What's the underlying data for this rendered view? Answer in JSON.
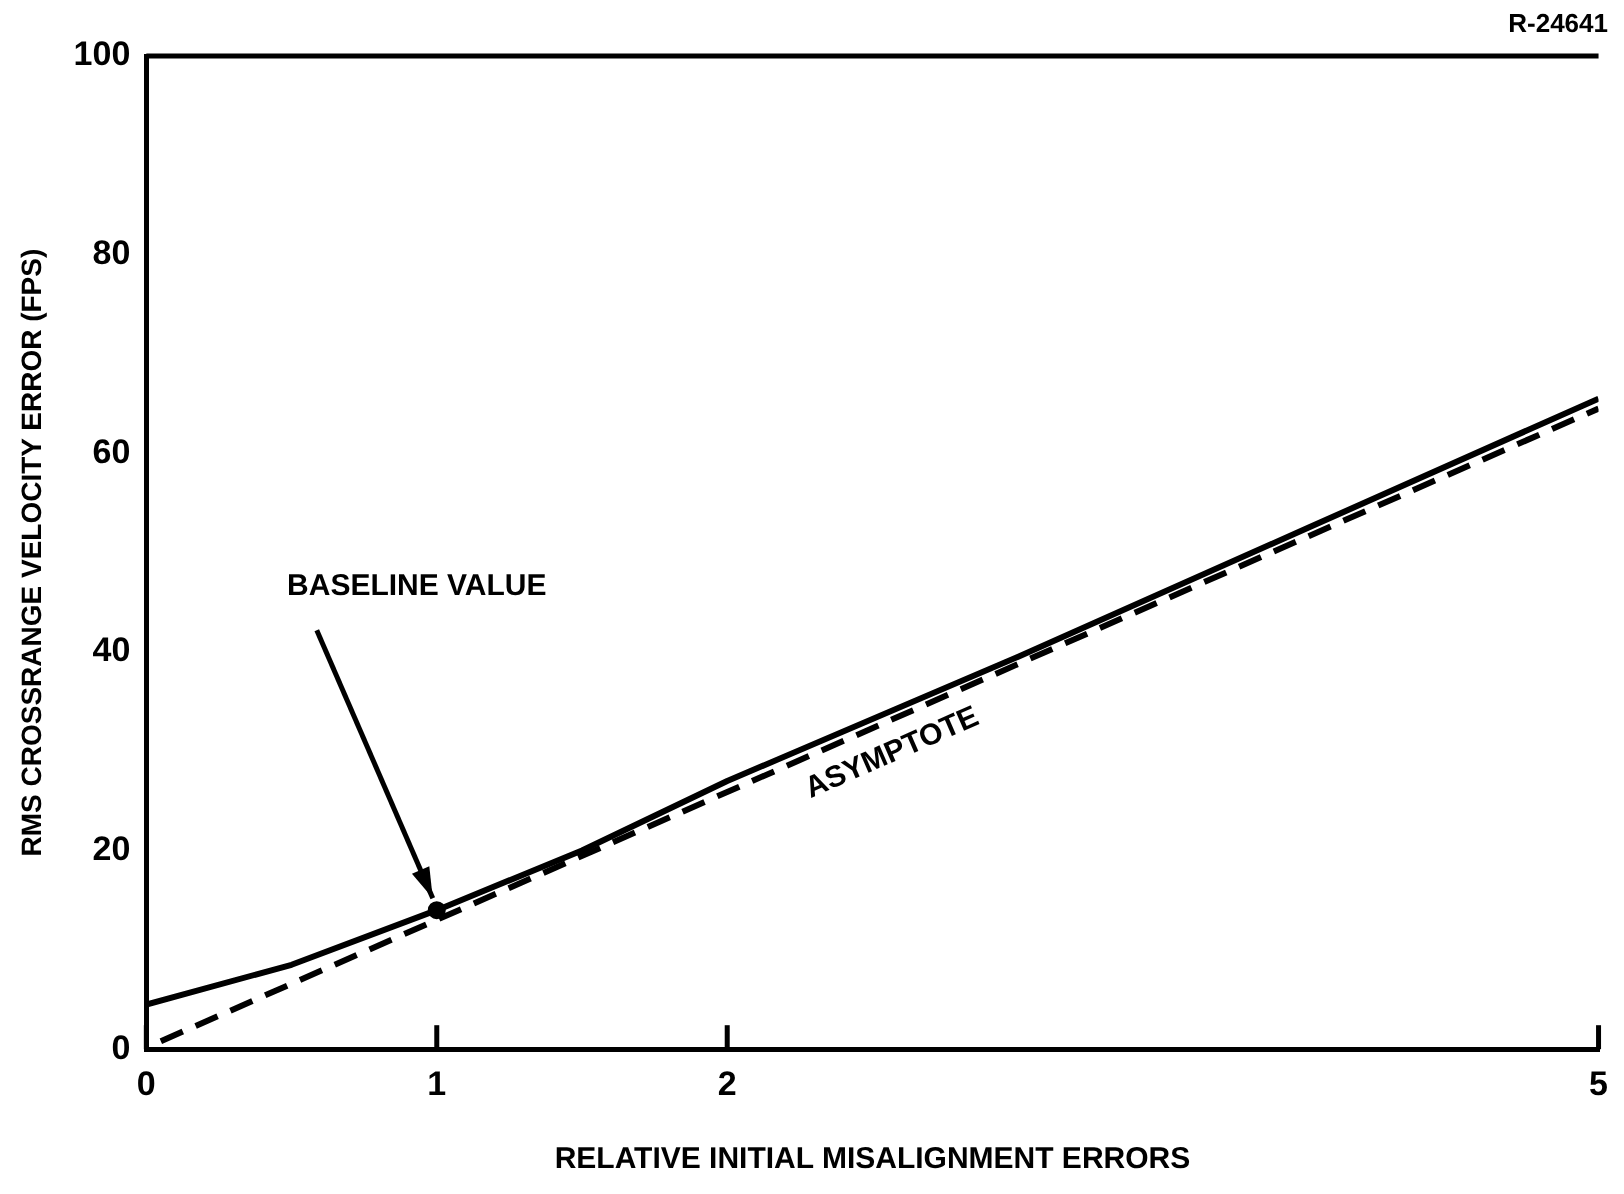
{
  "chart_data": {
    "type": "line",
    "xlabel": "RELATIVE INITIAL MISALIGNMENT ERRORS",
    "ylabel": "RMS CROSSRANGE VELOCITY ERROR (FPS)",
    "xlim": [
      0,
      5
    ],
    "ylim": [
      0,
      100
    ],
    "xticks": [
      0,
      1,
      2,
      5
    ],
    "yticks": [
      0,
      20,
      40,
      60,
      80,
      100
    ],
    "grid": false,
    "legend": false,
    "series": [
      {
        "type": "line",
        "color": "#000000",
        "line_style": "solid",
        "marker": "none",
        "x": [
          0,
          0.5,
          1,
          1.5,
          2,
          3,
          4,
          5
        ],
        "values": [
          4.5,
          8.5,
          14,
          20,
          27,
          39.5,
          52.5,
          65.5
        ]
      },
      {
        "type": "line",
        "name": "ASYMPTOTE",
        "color": "#000000",
        "line_style": "dashed",
        "marker": "none",
        "x": [
          0.05,
          5
        ],
        "values": [
          0.8,
          64.5
        ]
      },
      {
        "type": "scatter",
        "color": "#000000",
        "marker": "circle",
        "x": [
          1
        ],
        "values": [
          14
        ]
      }
    ],
    "annotations": [
      {
        "text": "BASELINE VALUE",
        "x": 1,
        "y": 14
      },
      "R-24641"
    ]
  }
}
